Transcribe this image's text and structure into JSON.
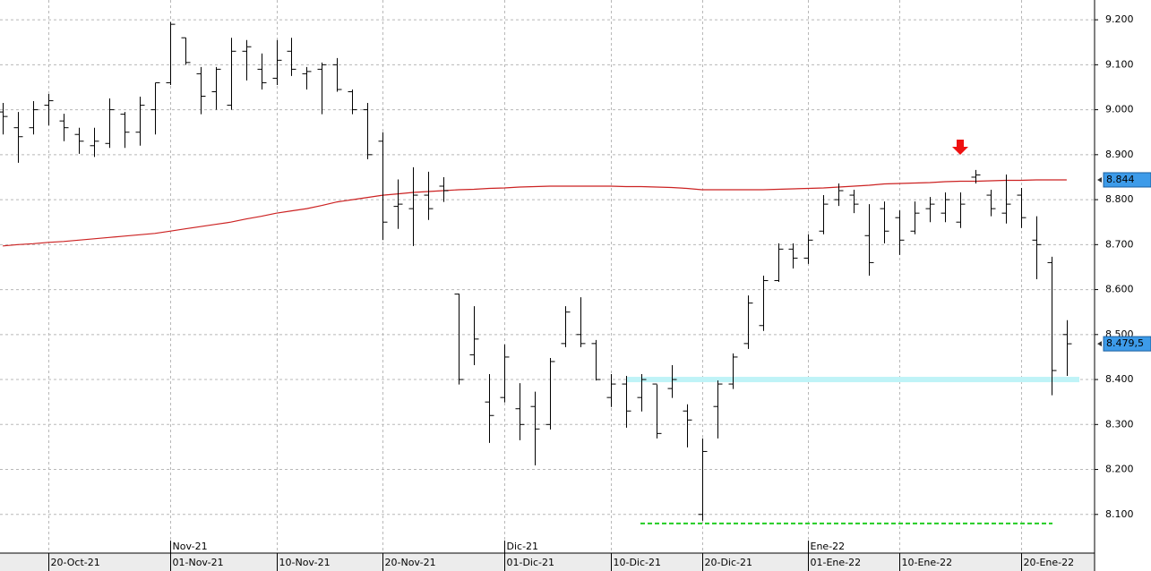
{
  "chart_data": {
    "type": "ohlc",
    "categories": [
      null,
      null,
      null,
      "20-Oct-21",
      null,
      null,
      null,
      null,
      null,
      null,
      null,
      "01-Nov-21",
      null,
      null,
      null,
      null,
      null,
      null,
      "10-Nov-21",
      null,
      null,
      null,
      null,
      null,
      null,
      "20-Nov-21",
      null,
      null,
      null,
      null,
      null,
      null,
      null,
      "01-Dic-21",
      null,
      null,
      null,
      null,
      null,
      null,
      "10-Dic-21",
      null,
      null,
      null,
      null,
      null,
      "20-Dic-21",
      null,
      null,
      null,
      null,
      null,
      null,
      "01-Ene-22",
      null,
      null,
      null,
      null,
      null,
      "10-Ene-22",
      null,
      null,
      null,
      null,
      null,
      null,
      null,
      "20-Ene-22",
      null,
      null,
      null
    ],
    "month_categories": [
      null,
      null,
      null,
      null,
      null,
      null,
      null,
      null,
      null,
      null,
      null,
      "Nov-21",
      null,
      null,
      null,
      null,
      null,
      null,
      null,
      null,
      null,
      null,
      null,
      null,
      null,
      null,
      null,
      null,
      null,
      null,
      null,
      null,
      null,
      "Dic-21",
      null,
      null,
      null,
      null,
      null,
      null,
      null,
      null,
      null,
      null,
      null,
      null,
      null,
      null,
      null,
      null,
      null,
      null,
      null,
      "Ene-22",
      null,
      null,
      null,
      null,
      null,
      null,
      null,
      null,
      null,
      null,
      null,
      null,
      null,
      null,
      null,
      null,
      null
    ],
    "open": [
      8995,
      8960,
      8960,
      9010,
      8975,
      8945,
      8920,
      8925,
      8990,
      8950,
      9000,
      9060,
      9160,
      9080,
      9040,
      9010,
      9130,
      9090,
      9070,
      9130,
      9080,
      9090,
      9100,
      9040,
      9000,
      8930,
      8785,
      8780,
      8810,
      8830,
      8590,
      8455,
      8350,
      8360,
      8335,
      8340,
      8300,
      8480,
      8500,
      8480,
      8360,
      8390,
      8360,
      8390,
      8380,
      8330,
      8100,
      8340,
      8390,
      8480,
      8520,
      8620,
      8690,
      8670,
      8730,
      8800,
      8810,
      8720,
      8780,
      8760,
      8730,
      8780,
      8770,
      8750,
      8850,
      8810,
      8770,
      8810,
      8710,
      8660,
      8500
    ],
    "high": [
      9015,
      8995,
      9019,
      9035,
      8991,
      8960,
      8960,
      9025,
      8995,
      9029,
      9060,
      9195,
      9160,
      9095,
      9095,
      9160,
      9155,
      9125,
      9155,
      9160,
      9095,
      9105,
      9115,
      9045,
      9015,
      8950,
      8845,
      8872,
      8862,
      8850,
      8591,
      8563,
      8412,
      8478,
      8392,
      8373,
      8448,
      8563,
      8583,
      8488,
      8412,
      8408,
      8412,
      8389,
      8432,
      8345,
      8269,
      8398,
      8458,
      8587,
      8631,
      8703,
      8703,
      8723,
      8810,
      8836,
      8822,
      8790,
      8796,
      8776,
      8796,
      8806,
      8816,
      8816,
      8866,
      8822,
      8856,
      8826,
      8763,
      8673,
      8532
    ],
    "low": [
      8945,
      8882,
      8945,
      8965,
      8930,
      8902,
      8895,
      8915,
      8915,
      8920,
      8945,
      9055,
      9100,
      8990,
      9000,
      9000,
      9065,
      9045,
      9055,
      9075,
      9045,
      8990,
      9040,
      8990,
      8890,
      8710,
      8735,
      8697,
      8755,
      8795,
      8389,
      8432,
      8259,
      8349,
      8265,
      8209,
      8289,
      8472,
      8472,
      8398,
      8339,
      8293,
      8329,
      8269,
      8359,
      8249,
      8086,
      8269,
      8379,
      8468,
      8508,
      8617,
      8647,
      8657,
      8723,
      8786,
      8770,
      8631,
      8703,
      8677,
      8723,
      8750,
      8750,
      8737,
      8836,
      8763,
      8747,
      8737,
      8623,
      8365,
      8408
    ],
    "close": [
      8985,
      8940,
      9000,
      9020,
      8960,
      8930,
      8930,
      9000,
      8950,
      9010,
      9060,
      9190,
      9105,
      9030,
      9090,
      9130,
      9140,
      9060,
      9110,
      9090,
      9085,
      9100,
      9045,
      9000,
      8900,
      8750,
      8790,
      8810,
      8780,
      8820,
      8400,
      8490,
      8320,
      8450,
      8300,
      8290,
      8440,
      8550,
      8480,
      8400,
      8390,
      8330,
      8400,
      8280,
      8400,
      8310,
      8240,
      8390,
      8450,
      8570,
      8620,
      8690,
      8670,
      8710,
      8790,
      8820,
      8790,
      8660,
      8730,
      8710,
      8770,
      8790,
      8800,
      8790,
      8855,
      8780,
      8790,
      8760,
      8700,
      8420,
      8479.5
    ],
    "bar_color": "#000000",
    "moving_average": {
      "color": "#cc2222",
      "values": [
        8697,
        8700,
        8702,
        8705,
        8707,
        8710,
        8713,
        8716,
        8719,
        8722,
        8725,
        8730,
        8735,
        8740,
        8745,
        8750,
        8757,
        8763,
        8770,
        8775,
        8780,
        8787,
        8795,
        8800,
        8805,
        8810,
        8813,
        8816,
        8818,
        8820,
        8822,
        8823,
        8825,
        8826,
        8828,
        8829,
        8830,
        8830,
        8830,
        8830,
        8830,
        8829,
        8829,
        8828,
        8827,
        8825,
        8822,
        8822,
        8822,
        8822,
        8822,
        8823,
        8824,
        8825,
        8826,
        8828,
        8830,
        8832,
        8835,
        8836,
        8837,
        8838,
        8840,
        8841,
        8841,
        8842,
        8843,
        8843,
        8844,
        8844,
        8844
      ]
    },
    "markers": [
      {
        "value": 8844,
        "label": "8.844"
      },
      {
        "value": 8479.5,
        "label": "8.479,5"
      }
    ],
    "levels": [
      {
        "value": 8400,
        "color": "#bff3f7"
      },
      {
        "value": 8080,
        "color": "#22cc22"
      }
    ],
    "xlim": [
      -0.18,
      71.83
    ],
    "ylim": [
      8014,
      9244
    ],
    "yticks": [
      {
        "value": 8100,
        "label": "8.100"
      },
      {
        "value": 8200,
        "label": "8.200"
      },
      {
        "value": 8300,
        "label": "8.300"
      },
      {
        "value": 8400,
        "label": "8.400"
      },
      {
        "value": 8500,
        "label": "8.500"
      },
      {
        "value": 8600,
        "label": "8.600"
      },
      {
        "value": 8700,
        "label": "8.700"
      },
      {
        "value": 8800,
        "label": "8.800"
      },
      {
        "value": 8900,
        "label": "8.900"
      },
      {
        "value": 9000,
        "label": "9.000"
      },
      {
        "value": 9100,
        "label": "9.100"
      },
      {
        "value": 9200,
        "label": "9.200"
      }
    ],
    "grid": true
  }
}
